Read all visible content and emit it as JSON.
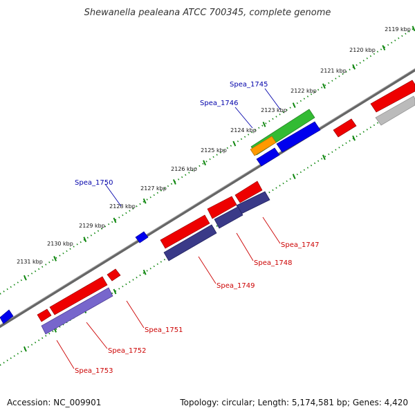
{
  "title": "Shewanella pealeana ATCC 700345, complete genome",
  "footer": {
    "accession": "Accession: NC_009901",
    "stats": "Topology: circular; Length: 5,174,581 bp; Genes: 4,420"
  },
  "colors": {
    "forward_strand": "#0000ee",
    "reverse_strand": "#ee0000",
    "label_forward": "#0000aa",
    "label_reverse": "#cc0000",
    "rna_green": "#33bb33",
    "rna_orange": "#ff9900",
    "cds_reverse_slate": "#3a3a88",
    "cds_reverse_lavender": "#7766cc",
    "pseudo_grey": "#bbbbbb",
    "backbone": "#777777",
    "tick": "#118811"
  },
  "kbp_scale": [
    "2119 kbp",
    "2120 kbp",
    "2121 kbp",
    "2122 kbp",
    "2123 kbp",
    "2124 kbp",
    "2125 kbp",
    "2126 kbp",
    "2127 kbp",
    "2128 kbp",
    "2129 kbp",
    "2130 kbp",
    "2131 kbp"
  ],
  "gene_labels": {
    "forward": [
      "Spea_1745",
      "Spea_1746",
      "Spea_1750"
    ],
    "reverse": [
      "Spea_1747",
      "Spea_1748",
      "Spea_1749",
      "Spea_1751",
      "Spea_1752",
      "Spea_1753"
    ]
  }
}
